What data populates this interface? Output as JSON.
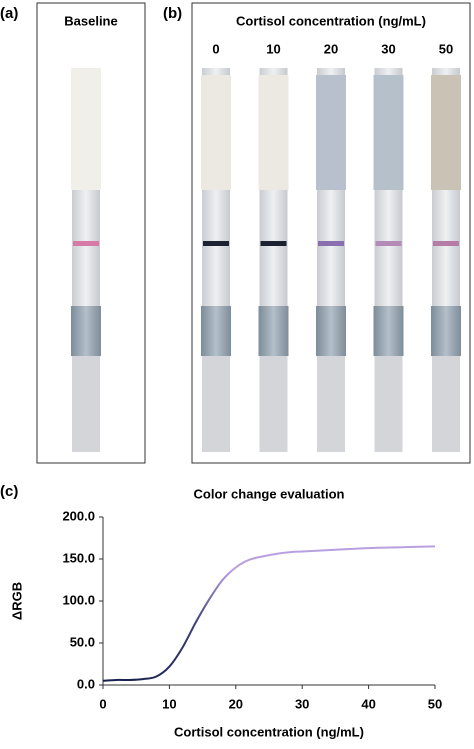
{
  "panels": {
    "a": {
      "label": "(a)",
      "title": "Baseline"
    },
    "b": {
      "label": "(b)",
      "title": "Cortisol concentration (ng/mL)",
      "strip_labels": [
        "0",
        "10",
        "20",
        "30",
        "50"
      ]
    },
    "c": {
      "label": "(c)"
    }
  },
  "chart_data": {
    "type": "line",
    "title": "Color change evaluation",
    "x_label": "Cortisol concentration (ng/mL)",
    "y_label": "ΔRGB",
    "xlim": [
      0,
      50
    ],
    "ylim": [
      0,
      200
    ],
    "xticks": [
      0,
      10,
      20,
      30,
      40,
      50
    ],
    "yticks": [
      {
        "value": 0,
        "label": "0.0"
      },
      {
        "value": 50,
        "label": "50.0"
      },
      {
        "value": 100,
        "label": "100.0"
      },
      {
        "value": 150,
        "label": "150.0"
      },
      {
        "value": 200,
        "label": "200.0"
      }
    ],
    "x": [
      0,
      2,
      4,
      6,
      8,
      10,
      12,
      14,
      16,
      18,
      20,
      22,
      24,
      26,
      28,
      30,
      35,
      40,
      45,
      50
    ],
    "series": [
      {
        "color": "#b89fe0",
        "values": [
          5,
          6,
          6,
          7,
          10,
          22,
          45,
          75,
          102,
          125,
          140,
          149,
          153,
          156,
          158,
          159,
          161,
          163,
          164,
          165
        ]
      }
    ]
  }
}
